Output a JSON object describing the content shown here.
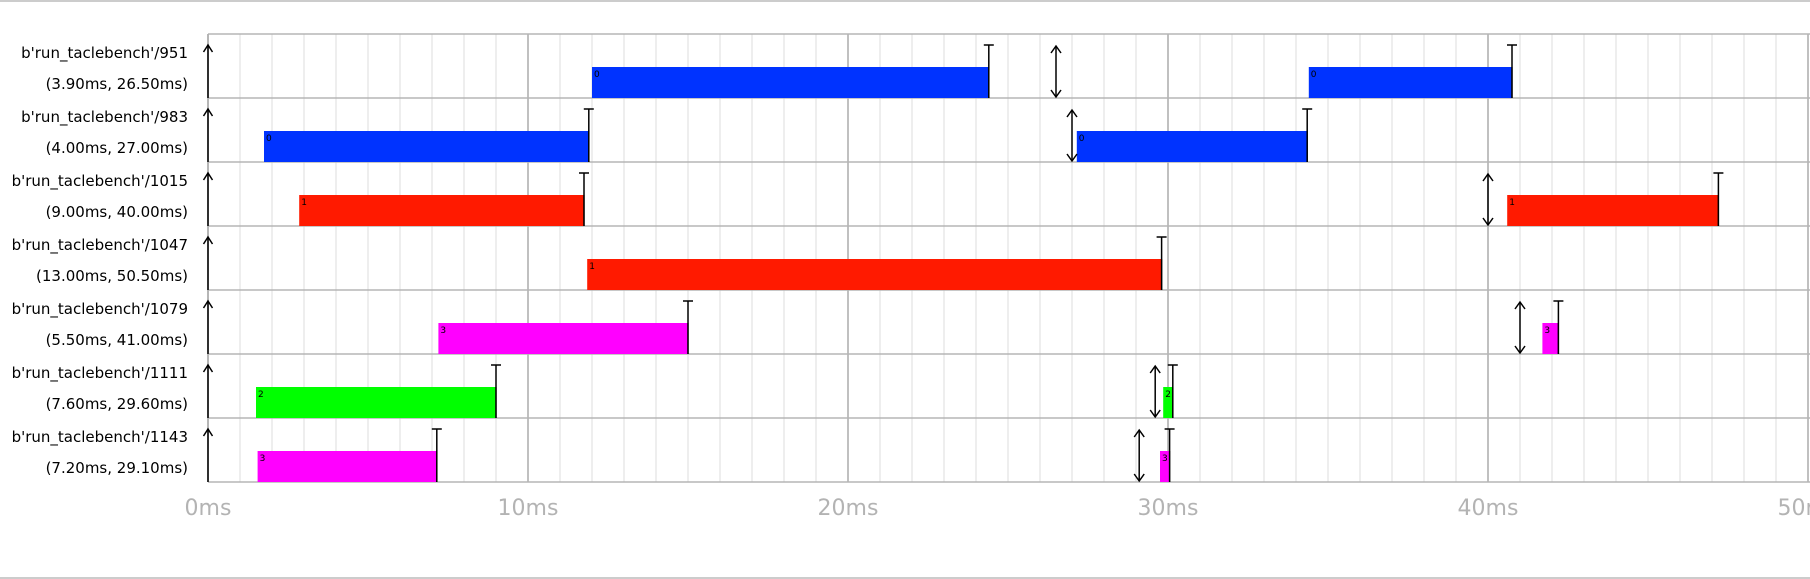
{
  "chart_data": {
    "type": "gantt",
    "title": "",
    "xlabel": "",
    "ylabel": "",
    "x_unit": "ms",
    "xlim": [
      0,
      50
    ],
    "x_ticks": [
      "0ms",
      "10ms",
      "20ms",
      "30ms",
      "40ms",
      "50ms"
    ],
    "grid": true,
    "task_colors": {
      "0": "#0033ff",
      "1": "#ff1a00",
      "2": "#00ff00",
      "3": "#ff00ff"
    },
    "rows": [
      {
        "name": "b'run_taclebench'/951",
        "params": "(3.90ms, 26.50ms)",
        "release_markers": [
          0,
          26.5
        ],
        "jobs": [
          {
            "start": 12.0,
            "end": 24.4,
            "task": "0",
            "deadline": 24.4
          },
          {
            "start": 34.4,
            "end": 40.75,
            "task": "0",
            "deadline": 40.75
          }
        ]
      },
      {
        "name": "b'run_taclebench'/983",
        "params": "(4.00ms, 27.00ms)",
        "release_markers": [
          0,
          27.0
        ],
        "jobs": [
          {
            "start": 1.75,
            "end": 11.9,
            "task": "0",
            "deadline": 11.9
          },
          {
            "start": 27.15,
            "end": 34.35,
            "task": "0",
            "deadline": 34.35
          }
        ]
      },
      {
        "name": "b'run_taclebench'/1015",
        "params": "(9.00ms, 40.00ms)",
        "release_markers": [
          0,
          40.0
        ],
        "jobs": [
          {
            "start": 2.85,
            "end": 11.75,
            "task": "1",
            "deadline": 11.75
          },
          {
            "start": 40.6,
            "end": 47.2,
            "task": "1",
            "deadline": 47.2
          }
        ]
      },
      {
        "name": "b'run_taclebench'/1047",
        "params": "(13.00ms, 50.50ms)",
        "release_markers": [
          0
        ],
        "jobs": [
          {
            "start": 11.85,
            "end": 29.8,
            "task": "1",
            "deadline": 29.8
          }
        ]
      },
      {
        "name": "b'run_taclebench'/1079",
        "params": "(5.50ms, 41.00ms)",
        "release_markers": [
          0,
          41.0
        ],
        "jobs": [
          {
            "start": 7.2,
            "end": 15.0,
            "task": "3",
            "deadline": 15.0
          },
          {
            "start": 41.7,
            "end": 42.2,
            "task": "3",
            "deadline": 42.2
          }
        ]
      },
      {
        "name": "b'run_taclebench'/1111",
        "params": "(7.60ms, 29.60ms)",
        "release_markers": [
          0,
          29.6
        ],
        "jobs": [
          {
            "start": 1.5,
            "end": 9.0,
            "task": "2",
            "deadline": 9.0
          },
          {
            "start": 29.85,
            "end": 30.15,
            "task": "2",
            "deadline": 30.15
          }
        ]
      },
      {
        "name": "b'run_taclebench'/1143",
        "params": "(7.20ms, 29.10ms)",
        "release_markers": [
          0,
          29.1
        ],
        "jobs": [
          {
            "start": 1.55,
            "end": 7.15,
            "task": "3",
            "deadline": 7.15
          },
          {
            "start": 29.75,
            "end": 30.05,
            "task": "3",
            "deadline": 30.05
          }
        ]
      }
    ]
  }
}
